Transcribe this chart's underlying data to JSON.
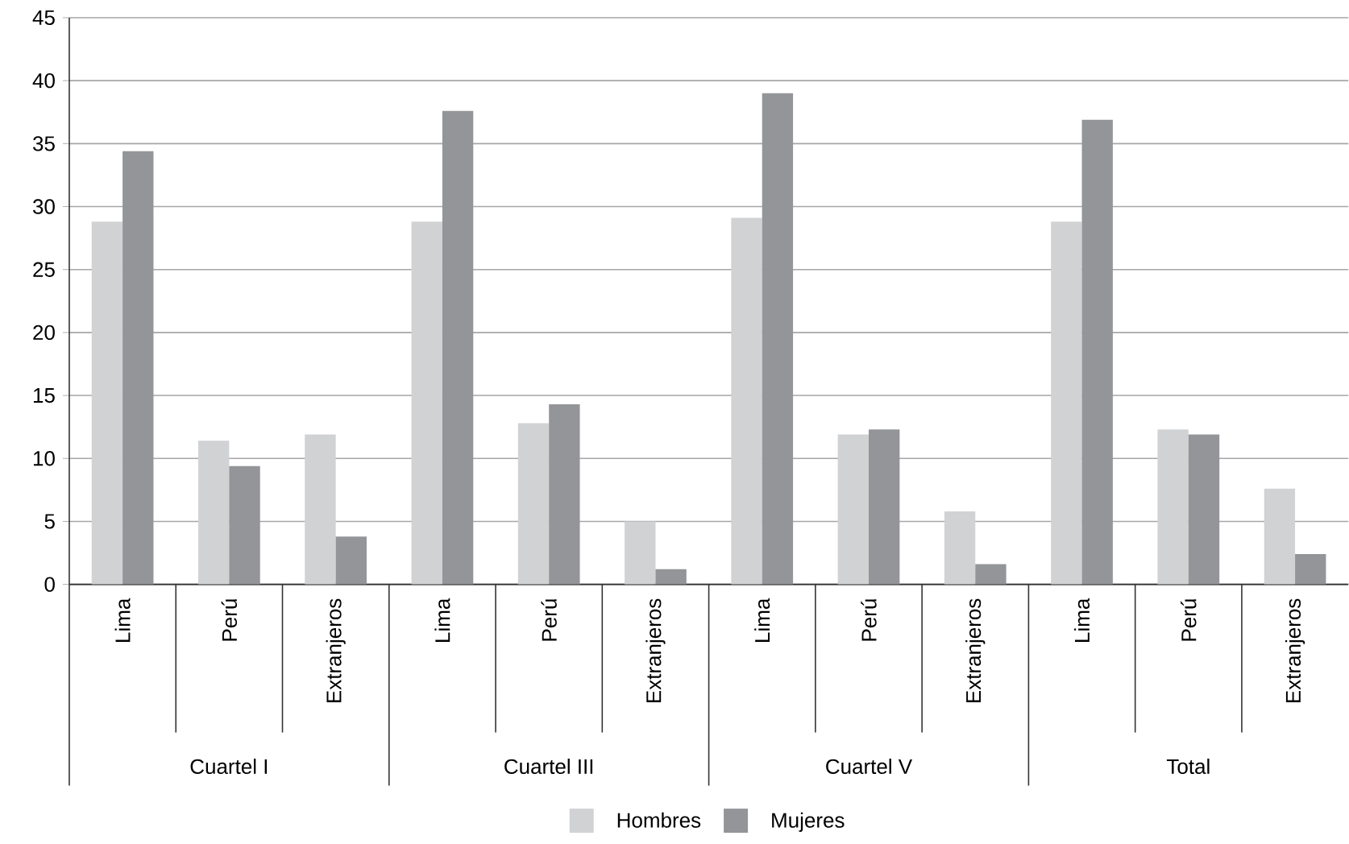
{
  "chart_data": {
    "type": "bar",
    "categories": [
      "Lima",
      "Perú",
      "Extranjeros",
      "Lima",
      "Perú",
      "Extranjeros",
      "Lima",
      "Perú",
      "Extranjeros",
      "Lima",
      "Perú",
      "Extranjeros"
    ],
    "annotations": [
      "Cuartel I",
      "Cuartel III",
      "Cuartel V",
      "Total"
    ],
    "series": [
      {
        "name": "Hombres",
        "color": "#d1d2d4",
        "values": [
          28.8,
          11.4,
          11.9,
          28.8,
          12.8,
          5.0,
          29.1,
          11.9,
          5.8,
          28.8,
          12.3,
          7.6
        ]
      },
      {
        "name": "Mujeres",
        "color": "#939598",
        "values": [
          34.4,
          9.4,
          3.8,
          37.6,
          14.3,
          1.2,
          39.0,
          12.3,
          1.6,
          36.9,
          11.9,
          2.4
        ]
      }
    ],
    "ylim": [
      0,
      45
    ],
    "yticks": [
      0,
      5,
      10,
      15,
      20,
      25,
      30,
      35,
      40,
      45
    ],
    "grid": "y",
    "legend": "bottom"
  }
}
